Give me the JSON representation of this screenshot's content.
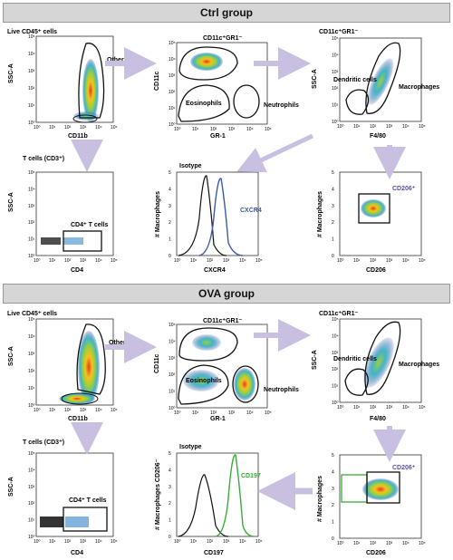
{
  "ctrl": {
    "banner": "Ctrl group",
    "p1": {
      "title": "Live CD45⁺ cells",
      "gate": "Other Cells",
      "xlabel": "CD11b",
      "ylabel": "SSC-A"
    },
    "p2": {
      "title": "CD11c⁺GR1⁻",
      "g1": "Eosinophils",
      "g2": "Neutrophils",
      "xlabel": "GR-1",
      "ylabel": "CD11c"
    },
    "p3": {
      "title": "CD11c⁺GR1⁻",
      "g1": "Dendritic cells",
      "g2": "Macrophages",
      "xlabel": "F4/80",
      "ylabel": "SSC-A"
    },
    "p4": {
      "title": "T cells (CD3⁺)",
      "gate": "CD4⁺ T cells",
      "xlabel": "CD4",
      "ylabel": "SSC-A"
    },
    "p5": {
      "title": "Isotype",
      "series": "CXCR4",
      "xlabel": "CXCR4",
      "ylabel": "# Macrophages"
    },
    "p6": {
      "gate": "CD206⁺",
      "xlabel": "CD206",
      "ylabel": "# Macrophages"
    }
  },
  "ova": {
    "banner": "OVA group",
    "p1": {
      "title": "Live CD45⁺ cells",
      "gate": "Other Cells",
      "xlabel": "CD11b",
      "ylabel": "SSC-A"
    },
    "p2": {
      "title": "CD11c⁺GR1⁻",
      "g1": "Eosinophils",
      "g2": "Neutrophils",
      "xlabel": "GR-1",
      "ylabel": "CD11c"
    },
    "p3": {
      "title": "CD11c⁺GR1⁻",
      "g1": "Dendritic cells",
      "g2": "Macrophages",
      "xlabel": "F4/80",
      "ylabel": "SSC-A"
    },
    "p4": {
      "title": "T cells (CD3⁺)",
      "gate": "CD4⁺ T cells",
      "xlabel": "CD4",
      "ylabel": "SSC-A"
    },
    "p5": {
      "title": "Isotype",
      "series": "CD197",
      "xlabel": "CD197",
      "ylabel": "# Macrophages CD206⁻"
    },
    "p6": {
      "gate": "CD206⁺",
      "xlabel": "CD206",
      "ylabel": "# Macrophages"
    }
  },
  "ticks": {
    "log": [
      "10⁰",
      "10¹",
      "10²",
      "10³",
      "10⁴",
      "10⁵"
    ],
    "hist_y": [
      "0",
      "1",
      "2",
      "3",
      "4",
      "5"
    ]
  },
  "colors": {
    "gate": "#111111",
    "isotype": "#111111",
    "cxcr4": "#3b5ca8",
    "cd197": "#3aaa3a",
    "cd206_gate": "#3aaa3a",
    "arrow": "#c9bfe0",
    "banner": "#d6d6d6"
  }
}
